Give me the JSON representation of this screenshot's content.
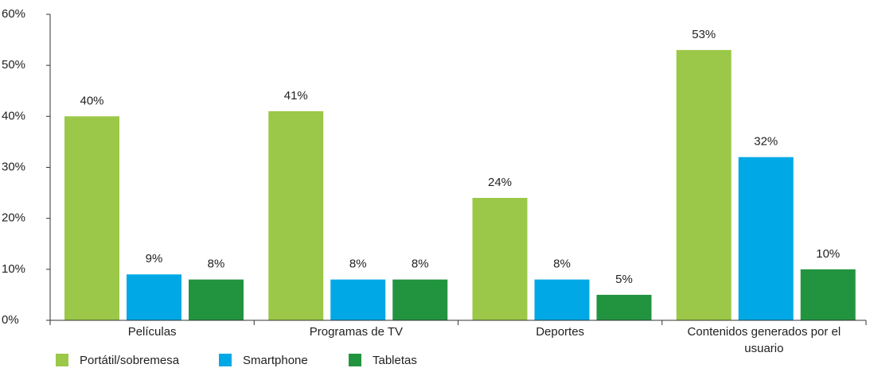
{
  "chart_data": {
    "type": "bar",
    "categories": [
      "Películas",
      "Programas de TV",
      "Deportes",
      "Contenidos generados por el usuario"
    ],
    "series": [
      {
        "name": "Portátil/sobremesa",
        "color": "#9bc848",
        "values": [
          40,
          41,
          24,
          53
        ],
        "value_labels": [
          "40%",
          "41%",
          "24%",
          "53%"
        ]
      },
      {
        "name": "Smartphone",
        "color": "#00a9e6",
        "values": [
          9,
          8,
          8,
          32
        ],
        "value_labels": [
          "9%",
          "8%",
          "8%",
          "32%"
        ]
      },
      {
        "name": "Tabletas",
        "color": "#22943f",
        "values": [
          8,
          8,
          5,
          10
        ],
        "value_labels": [
          "8%",
          "8%",
          "5%",
          "10%"
        ]
      }
    ],
    "ylim": [
      0,
      60
    ],
    "yticks": [
      {
        "value": 0,
        "label": "0%"
      },
      {
        "value": 10,
        "label": "10%"
      },
      {
        "value": 20,
        "label": "20%"
      },
      {
        "value": 30,
        "label": "30%"
      },
      {
        "value": 40,
        "label": "40%"
      },
      {
        "value": 50,
        "label": "50%"
      },
      {
        "value": 60,
        "label": "60%"
      }
    ],
    "legend": "bottom-left"
  }
}
